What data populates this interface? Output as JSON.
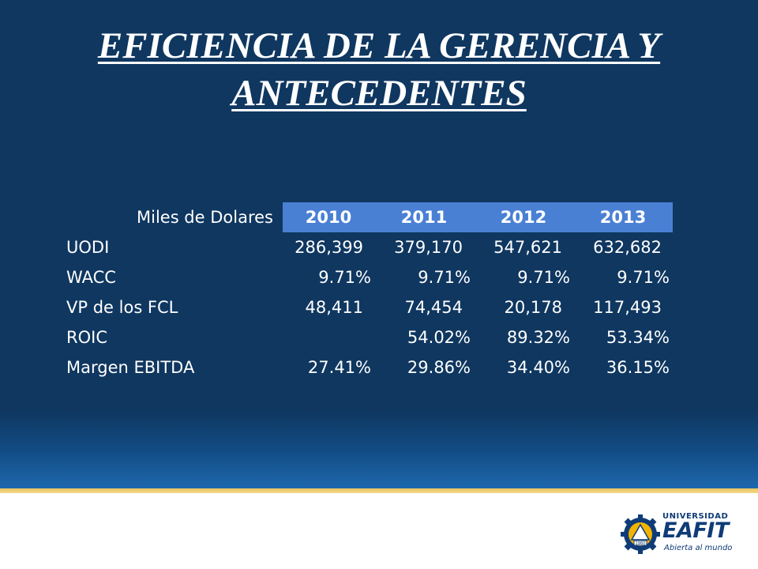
{
  "slide": {
    "title": "EFICIENCIA DE LA GERENCIA Y ANTECEDENTES"
  },
  "table": {
    "header_label": "Miles de Dolares",
    "years": [
      "2010",
      "2011",
      "2012",
      "2013"
    ],
    "rows": [
      {
        "label": "UODI",
        "values": [
          "286,399",
          "379,170",
          "547,621",
          "632,682"
        ]
      },
      {
        "label": "WACC",
        "values": [
          "9.71%",
          "9.71%",
          "9.71%",
          "9.71%"
        ]
      },
      {
        "label": "VP de los FCL",
        "values": [
          "48,411",
          "74,454",
          "20,178",
          "117,493"
        ]
      },
      {
        "label": "ROIC",
        "values": [
          "",
          "54.02%",
          "89.32%",
          "53.34%"
        ]
      },
      {
        "label": "Margen EBITDA",
        "values": [
          "27.41%",
          "29.86%",
          "34.40%",
          "36.15%"
        ]
      }
    ]
  },
  "logo": {
    "line1": "UNIVERSIDAD",
    "line2": "EAFIT",
    "tagline": "Abierta al mundo",
    "year": "1960",
    "icon": "gear-seal-icon"
  },
  "colors": {
    "background": "#0f3760",
    "header_fill": "#4a80d4",
    "accent_line": "#e8c35a",
    "logo_blue": "#0f3c78",
    "logo_gold": "#f2b400"
  }
}
